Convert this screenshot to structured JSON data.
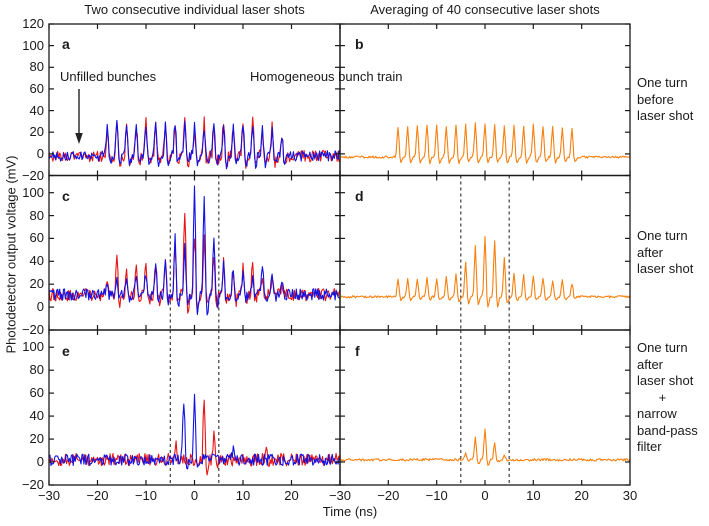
{
  "titles": {
    "left": "Two consecutive individual laser shots",
    "right": "Averaging of 40 consecutive laser shots"
  },
  "axes": {
    "x_label": "Time (ns)",
    "y_label": "Photodetector output voltage (mV)",
    "x_tick_marks": [
      -30,
      -20,
      -10,
      0,
      10,
      20,
      30
    ],
    "x_tick_labels_left": [
      -30,
      -20,
      -10,
      0,
      10,
      20
    ],
    "x_tick_labels_right": [
      -30,
      -20,
      -10,
      0,
      10,
      20,
      30
    ]
  },
  "row_labels": [
    "One turn\nbefore\nlaser shot",
    "One turn\nafter\nlaser shot",
    "One turn\nafter\nlaser shot\n      +\nnarrow\nband-pass\nfilter"
  ],
  "annotations": {
    "unfilled_bunches": {
      "text": "Unfilled bunches",
      "panel": "a",
      "arrow_points_to_ns": -24
    },
    "homogeneous": {
      "text": "Homogeneous bunch train"
    }
  },
  "colors": {
    "red": "#e81414",
    "blue": "#1212e4",
    "orange": "#f8800e",
    "dashed": "#3c3c3c",
    "axis": "#1a1a1a"
  },
  "chart_data": [
    {
      "id": "a",
      "type": "line",
      "col": 0,
      "row": 0,
      "xlim": [
        -30,
        30
      ],
      "ylim": [
        -20,
        120
      ],
      "y_ticks": [
        -20,
        0,
        20,
        40,
        60,
        80,
        100,
        120
      ],
      "dashed_lines_x": [],
      "pulse_positions": {
        "start": -18,
        "end": 18,
        "step": 2
      },
      "series": [
        {
          "name": "laser shot 1",
          "color": "red",
          "baseline": -2,
          "noise": 5.5,
          "undershoot": 0.25,
          "pulse_heights": [
            24,
            31,
            29,
            27,
            32,
            28,
            32,
            30,
            33,
            27,
            31,
            28,
            33,
            27,
            30,
            32,
            24,
            27,
            19
          ]
        },
        {
          "name": "laser shot 2",
          "color": "blue",
          "baseline": -2,
          "noise": 5,
          "undershoot": 0.25,
          "pulse_heights": [
            27,
            29,
            26,
            31,
            28,
            32,
            29,
            33,
            29,
            31,
            27,
            32,
            29,
            31,
            33,
            29,
            27,
            24,
            21
          ]
        }
      ]
    },
    {
      "id": "b",
      "type": "line",
      "col": 1,
      "row": 0,
      "xlim": [
        -30,
        30
      ],
      "ylim": [
        -20,
        120
      ],
      "y_ticks": [
        -20,
        0,
        20,
        40,
        60,
        80,
        100,
        120
      ],
      "dashed_lines_x": [],
      "pulse_positions": {
        "start": -18,
        "end": 18,
        "step": 2
      },
      "series": [
        {
          "name": "average of 40 shots",
          "color": "orange",
          "baseline": -3,
          "noise": 1,
          "undershoot": 0.18,
          "pulse_heights": [
            28,
            29,
            29,
            30,
            29,
            29,
            30,
            30,
            31,
            31,
            30,
            30,
            29,
            29,
            30,
            29,
            29,
            28,
            26
          ]
        }
      ]
    },
    {
      "id": "c",
      "type": "line",
      "col": 0,
      "row": 1,
      "xlim": [
        -30,
        30
      ],
      "ylim": [
        -20,
        115
      ],
      "y_ticks": [
        -20,
        0,
        20,
        40,
        60,
        80,
        100
      ],
      "dashed_lines_x": [
        -5,
        5
      ],
      "pulse_positions": {
        "start": -18,
        "end": 18,
        "step": 2
      },
      "series": [
        {
          "name": "laser shot 1",
          "color": "red",
          "baseline": 11,
          "noise": 5.5,
          "undershoot": 0.22,
          "pulse_heights": [
            9,
            34,
            22,
            25,
            27,
            29,
            35,
            44,
            76,
            54,
            49,
            37,
            29,
            26,
            23,
            27,
            19,
            17,
            7
          ]
        },
        {
          "name": "laser shot 2",
          "color": "blue",
          "baseline": 11,
          "noise": 5,
          "undershoot": 0.22,
          "pulse_heights": [
            5,
            14,
            18,
            16,
            20,
            22,
            31,
            54,
            46,
            94,
            88,
            50,
            27,
            23,
            19,
            17,
            27,
            15,
            11
          ]
        }
      ]
    },
    {
      "id": "d",
      "type": "line",
      "col": 1,
      "row": 1,
      "xlim": [
        -30,
        30
      ],
      "ylim": [
        -20,
        115
      ],
      "y_ticks": [
        -20,
        0,
        20,
        40,
        60,
        80,
        100
      ],
      "dashed_lines_x": [
        -5,
        5
      ],
      "pulse_positions": {
        "start": -18,
        "end": 18,
        "step": 2
      },
      "series": [
        {
          "name": "average of 40 shots",
          "color": "orange",
          "baseline": 9,
          "noise": 1,
          "undershoot": 0.18,
          "pulse_heights": [
            15,
            16,
            16,
            17,
            16,
            17,
            20,
            31,
            44,
            54,
            50,
            35,
            21,
            19,
            18,
            16,
            15,
            14,
            12
          ]
        }
      ]
    },
    {
      "id": "e",
      "type": "line",
      "col": 0,
      "row": 2,
      "xlim": [
        -30,
        30
      ],
      "ylim": [
        -20,
        115
      ],
      "y_ticks": [
        -20,
        0,
        20,
        40,
        60,
        80,
        100
      ],
      "dashed_lines_x": [
        -5,
        5
      ],
      "pulse_positions": null,
      "series": [
        {
          "name": "laser shot 1",
          "color": "red",
          "baseline": 2,
          "noise": 5.5,
          "undershoot": 0.2,
          "spikes": [
            {
              "t": -3.8,
              "h": 15
            },
            {
              "t": 2,
              "h": 55
            },
            {
              "t": 4,
              "h": 23
            },
            {
              "t": 14.8,
              "h": 10
            }
          ]
        },
        {
          "name": "laser shot 2",
          "color": "blue",
          "baseline": 2,
          "noise": 5,
          "undershoot": 0.2,
          "spikes": [
            {
              "t": -2.2,
              "h": 53
            },
            {
              "t": 0,
              "h": 57
            },
            {
              "t": 8,
              "h": 11
            }
          ]
        }
      ]
    },
    {
      "id": "f",
      "type": "line",
      "col": 1,
      "row": 2,
      "xlim": [
        -30,
        30
      ],
      "ylim": [
        -20,
        115
      ],
      "y_ticks": [
        -20,
        0,
        20,
        40,
        60,
        80,
        100
      ],
      "dashed_lines_x": [
        -5,
        5
      ],
      "pulse_positions": null,
      "series": [
        {
          "name": "average of 40 shots",
          "color": "orange",
          "baseline": 2,
          "noise": 1.1,
          "undershoot": 0.18,
          "spikes": [
            {
              "t": -4,
              "h": 5
            },
            {
              "t": -2,
              "h": 20
            },
            {
              "t": 0,
              "h": 27
            },
            {
              "t": 2,
              "h": 15
            },
            {
              "t": 4,
              "h": 4
            }
          ]
        }
      ]
    }
  ]
}
